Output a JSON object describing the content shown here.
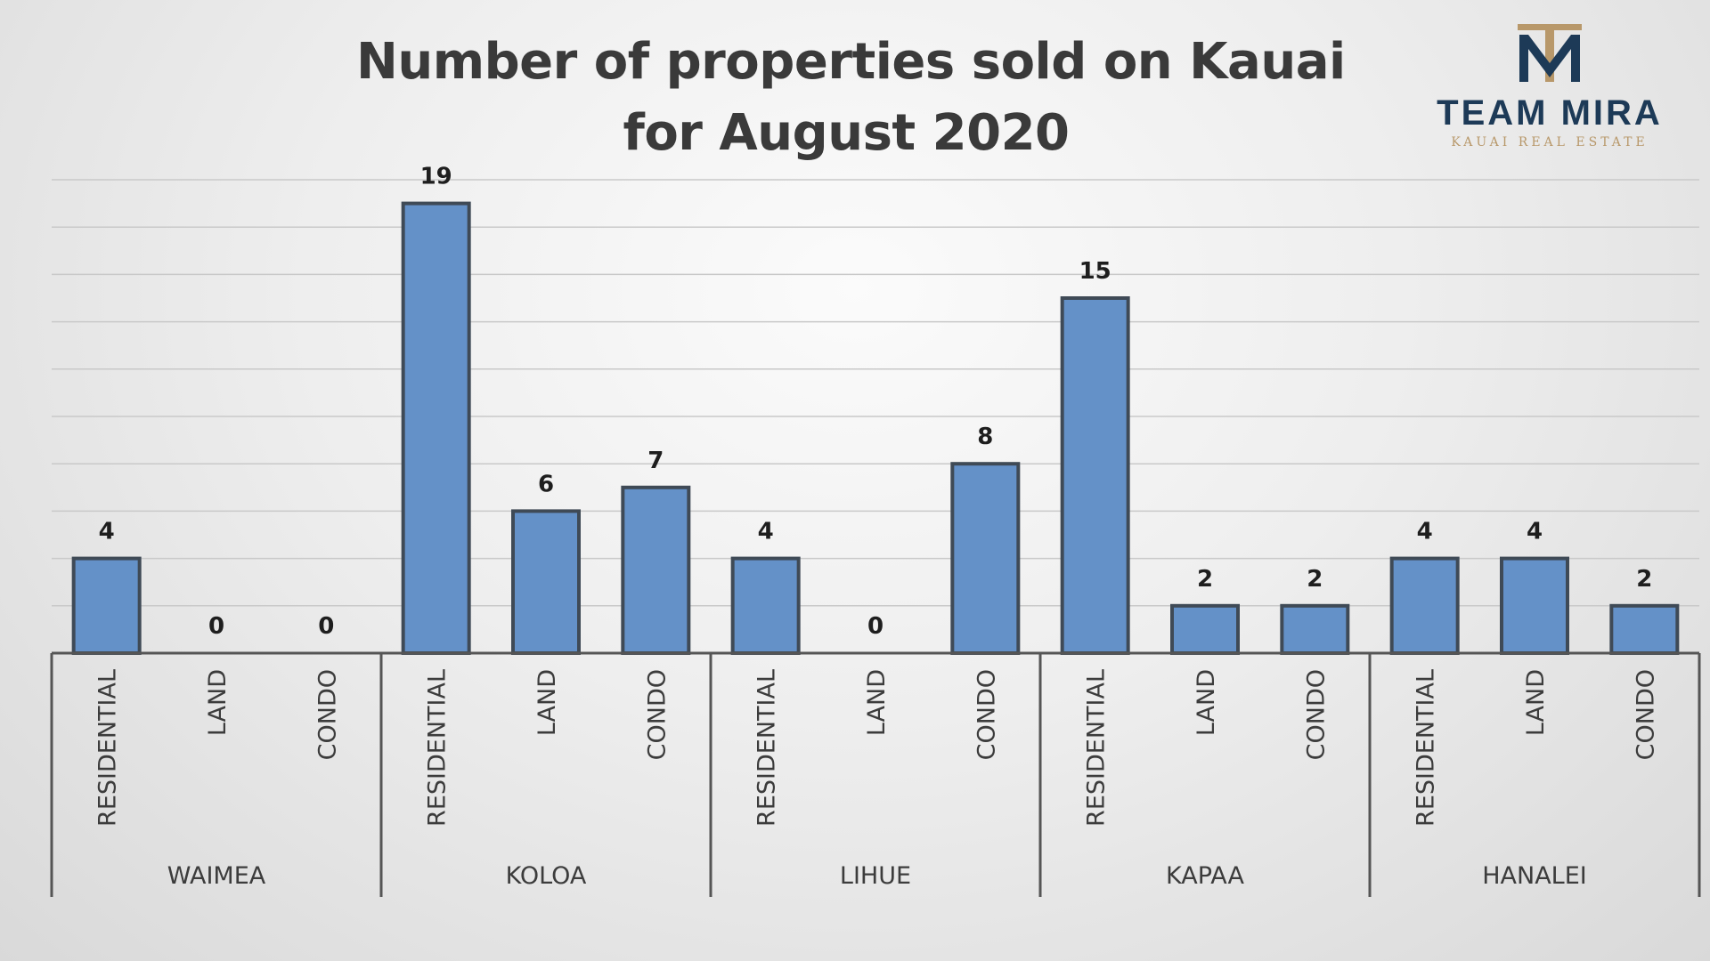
{
  "chart_data": {
    "type": "bar",
    "title_line1": "Number of properties sold on Kauai",
    "title_line2": "for August 2020",
    "groups": [
      "WAIMEA",
      "KOLOA",
      "LIHUE",
      "KAPAA",
      "HANALEI"
    ],
    "categories": [
      "RESIDENTIAL",
      "LAND",
      "CONDO",
      "RESIDENTIAL",
      "LAND",
      "CONDO",
      "RESIDENTIAL",
      "LAND",
      "CONDO",
      "RESIDENTIAL",
      "LAND",
      "CONDO",
      "RESIDENTIAL",
      "LAND",
      "CONDO"
    ],
    "values": [
      4,
      0,
      0,
      19,
      6,
      7,
      4,
      0,
      8,
      15,
      2,
      2,
      4,
      4,
      2
    ],
    "ylim": [
      0,
      20
    ],
    "grid": true,
    "data_labels": true,
    "bar_color": "#6491c8",
    "bar_border": "#3f4a56"
  },
  "logo": {
    "name": "TEAM MIRA",
    "tagline": "KAUAI REAL ESTATE",
    "navy": "#1d3a57",
    "gold": "#b8986a"
  }
}
